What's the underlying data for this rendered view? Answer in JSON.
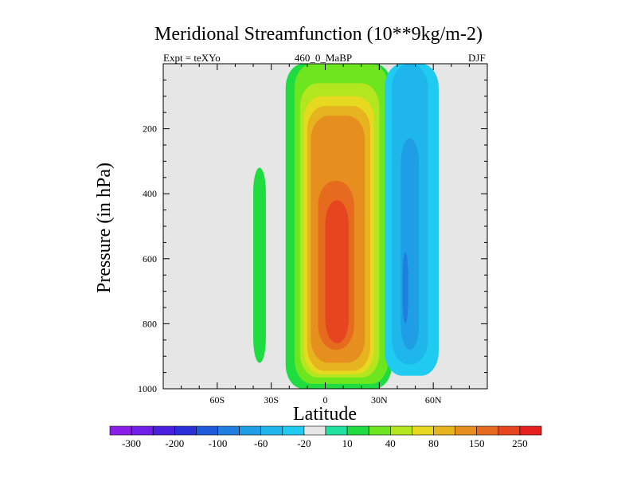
{
  "chart_data": {
    "type": "heatmap",
    "title": "Meridional Streamfunction (10**9kg/m-2)",
    "subtitle_left": "Expt = teXYo",
    "subtitle_center": "460_0_MaBP",
    "subtitle_right": "DJF",
    "xlabel": "Latitude",
    "ylabel": "Pressure (in hPa)",
    "xlim": [
      -90,
      90
    ],
    "ylim": [
      1000,
      0
    ],
    "x_ticks": [
      {
        "value": -60,
        "label": "60S"
      },
      {
        "value": -30,
        "label": "30S"
      },
      {
        "value": 0,
        "label": "0"
      },
      {
        "value": 30,
        "label": "30N"
      },
      {
        "value": 60,
        "label": "60N"
      }
    ],
    "y_ticks": [
      {
        "value": 200,
        "label": "200"
      },
      {
        "value": 400,
        "label": "400"
      },
      {
        "value": 600,
        "label": "600"
      },
      {
        "value": 800,
        "label": "800"
      },
      {
        "value": 1000,
        "label": "1000"
      }
    ],
    "contour_levels": [
      -300,
      -250,
      -200,
      -150,
      -100,
      -80,
      -60,
      -40,
      -20,
      -10,
      10,
      20,
      40,
      60,
      80,
      100,
      150,
      200,
      250,
      300
    ],
    "colorbar_labels": [
      "-300",
      "-200",
      "-100",
      "-60",
      "-20",
      "10",
      "40",
      "80",
      "150",
      "250"
    ],
    "colorbar_colors": [
      "#8a1fe8",
      "#6f1fe8",
      "#4a1fe0",
      "#2a2fd8",
      "#1f5ad8",
      "#1f7ee0",
      "#1f9ee6",
      "#1fb6ec",
      "#1fcbf0",
      "#e6e6e6",
      "#1fe1a0",
      "#1fdc40",
      "#6ee61f",
      "#b4e61f",
      "#e6d91f",
      "#e6b41f",
      "#e68f1f",
      "#e66b1f",
      "#e6451f",
      "#e61f1f"
    ],
    "missing_color": "#e6e6e6",
    "grid": false,
    "legend": "bottom colorbar",
    "regions": [
      {
        "sign": "positive",
        "level_index": 11,
        "lat": [
          -40,
          -33
        ],
        "p": [
          320,
          920
        ]
      },
      {
        "sign": "positive",
        "level_index": 11,
        "lat": [
          -22,
          37
        ],
        "p": [
          0,
          1000
        ]
      },
      {
        "sign": "positive",
        "level_index": 12,
        "lat": [
          -17,
          35
        ],
        "p": [
          0,
          985
        ]
      },
      {
        "sign": "positive",
        "level_index": 13,
        "lat": [
          -14,
          30
        ],
        "p": [
          60,
          965
        ]
      },
      {
        "sign": "positive",
        "level_index": 14,
        "lat": [
          -12,
          27
        ],
        "p": [
          100,
          955
        ]
      },
      {
        "sign": "positive",
        "level_index": 15,
        "lat": [
          -10,
          25
        ],
        "p": [
          130,
          945
        ]
      },
      {
        "sign": "positive",
        "level_index": 16,
        "lat": [
          -8,
          22
        ],
        "p": [
          160,
          920
        ]
      },
      {
        "sign": "positive",
        "level_index": 17,
        "lat": [
          -4,
          16
        ],
        "p": [
          360,
          880
        ]
      },
      {
        "sign": "positive",
        "level_index": 18,
        "lat": [
          0,
          13
        ],
        "p": [
          420,
          860
        ]
      },
      {
        "sign": "negative",
        "level_index": 8,
        "lat": [
          33,
          63
        ],
        "p": [
          0,
          960
        ]
      },
      {
        "sign": "negative",
        "level_index": 7,
        "lat": [
          37,
          57
        ],
        "p": [
          0,
          925
        ]
      },
      {
        "sign": "negative",
        "level_index": 6,
        "lat": [
          42,
          52
        ],
        "p": [
          230,
          880
        ]
      },
      {
        "sign": "negative",
        "level_index": 5,
        "lat": [
          43,
          46
        ],
        "p": [
          580,
          800
        ]
      }
    ]
  }
}
